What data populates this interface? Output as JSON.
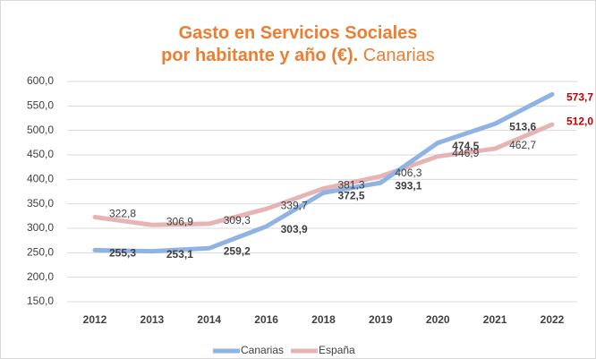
{
  "chart_data": {
    "type": "line",
    "title_lines": [
      "Gasto en Servicios Sociales",
      "por habitante y año (€)."
    ],
    "title_suffix": "Canarias",
    "title_color": "#ed7d31",
    "categories": [
      "2012",
      "2013",
      "2014",
      "2016",
      "2018",
      "2019",
      "2020",
      "2021",
      "2022"
    ],
    "series": [
      {
        "name": "Canarias",
        "color": "#8fb4e3",
        "label_bold": true,
        "values": [
          255.3,
          253.1,
          259.2,
          303.9,
          372.5,
          393.1,
          474.5,
          513.6,
          573.7
        ],
        "value_labels": [
          "255,3",
          "253,1",
          "259,2",
          "303,9",
          "372,5",
          "393,1",
          "474,5",
          "513,6",
          "573,7"
        ]
      },
      {
        "name": "España",
        "color": "#e6b4b4",
        "label_bold": false,
        "values": [
          322.8,
          306.9,
          309.3,
          339.7,
          381.3,
          406.3,
          446.9,
          462.7,
          512.0
        ],
        "value_labels": [
          "322,8",
          "306,9",
          "309,3",
          "339,7",
          "381,3",
          "406,3",
          "446,9",
          "462,7",
          "512,0"
        ]
      }
    ],
    "last_label_color": "#c00000",
    "ylim": [
      150,
      600
    ],
    "yticks": [
      {
        "value": 150,
        "label": "150,0"
      },
      {
        "value": 200,
        "label": "200,0"
      },
      {
        "value": 250,
        "label": "250,0"
      },
      {
        "value": 300,
        "label": "300,0"
      },
      {
        "value": 350,
        "label": "350,0"
      },
      {
        "value": 400,
        "label": "400,0"
      },
      {
        "value": 450,
        "label": "450,0"
      },
      {
        "value": 500,
        "label": "500,0"
      },
      {
        "value": 550,
        "label": "550,0"
      },
      {
        "value": 600,
        "label": "600,0"
      }
    ],
    "grid": true,
    "legend": "bottom"
  }
}
